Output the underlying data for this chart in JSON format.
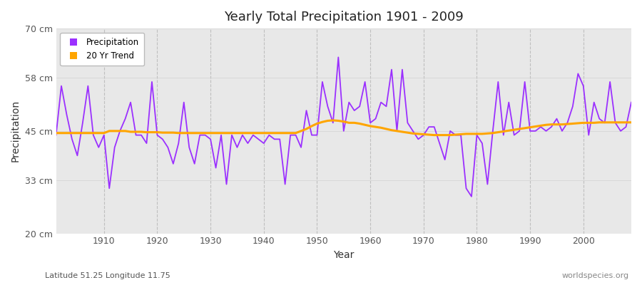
{
  "title": "Yearly Total Precipitation 1901 - 2009",
  "xlabel": "Year",
  "ylabel": "Precipitation",
  "subtitle": "Latitude 51.25 Longitude 11.75",
  "watermark": "worldspecies.org",
  "ylim": [
    20,
    70
  ],
  "yticks": [
    20,
    33,
    45,
    58,
    70
  ],
  "ytick_labels": [
    "20 cm",
    "33 cm",
    "45 cm",
    "58 cm",
    "70 cm"
  ],
  "start_year": 1901,
  "precip_color": "#9B30FF",
  "trend_color": "#FFA500",
  "bg_color": "#FFFFFF",
  "plot_bg_color": "#E8E8E8",
  "precipitation": [
    44,
    56,
    49,
    43,
    39,
    47,
    56,
    44,
    41,
    44,
    31,
    41,
    45,
    48,
    52,
    44,
    44,
    42,
    57,
    44,
    43,
    41,
    37,
    42,
    52,
    41,
    37,
    44,
    44,
    43,
    36,
    44,
    32,
    44,
    41,
    44,
    42,
    44,
    43,
    42,
    44,
    43,
    43,
    32,
    44,
    44,
    41,
    50,
    44,
    44,
    57,
    51,
    47,
    63,
    45,
    52,
    50,
    51,
    57,
    47,
    48,
    52,
    51,
    60,
    45,
    60,
    47,
    45,
    43,
    44,
    46,
    46,
    42,
    38,
    45,
    44,
    44,
    31,
    29,
    44,
    42,
    32,
    45,
    57,
    44,
    52,
    44,
    45,
    57,
    45,
    45,
    46,
    45,
    46,
    48,
    45,
    47,
    51,
    59,
    56,
    44,
    52,
    48,
    47,
    57,
    47,
    45,
    46,
    52
  ],
  "trend": [
    44.5,
    44.5,
    44.5,
    44.5,
    44.5,
    44.5,
    44.5,
    44.5,
    44.5,
    44.5,
    45.0,
    45.0,
    45.0,
    45.0,
    44.8,
    44.8,
    44.8,
    44.7,
    44.7,
    44.7,
    44.6,
    44.6,
    44.6,
    44.5,
    44.5,
    44.5,
    44.5,
    44.5,
    44.5,
    44.5,
    44.5,
    44.5,
    44.5,
    44.5,
    44.5,
    44.5,
    44.5,
    44.5,
    44.5,
    44.5,
    44.5,
    44.5,
    44.5,
    44.5,
    44.5,
    44.5,
    45.0,
    45.5,
    46.2,
    46.8,
    47.2,
    47.5,
    47.6,
    47.5,
    47.3,
    47.0,
    47.0,
    46.8,
    46.5,
    46.2,
    46.0,
    45.8,
    45.5,
    45.2,
    45.0,
    44.8,
    44.6,
    44.4,
    44.3,
    44.2,
    44.1,
    44.0,
    44.0,
    44.0,
    44.0,
    44.1,
    44.2,
    44.3,
    44.3,
    44.3,
    44.3,
    44.4,
    44.5,
    44.7,
    44.9,
    45.1,
    45.3,
    45.5,
    45.7,
    45.9,
    46.1,
    46.3,
    46.5,
    46.6,
    46.6,
    46.6,
    46.7,
    46.8,
    46.9,
    47.0,
    47.0,
    47.0,
    47.1,
    47.1,
    47.1,
    47.1,
    47.1,
    47.1,
    47.1
  ]
}
